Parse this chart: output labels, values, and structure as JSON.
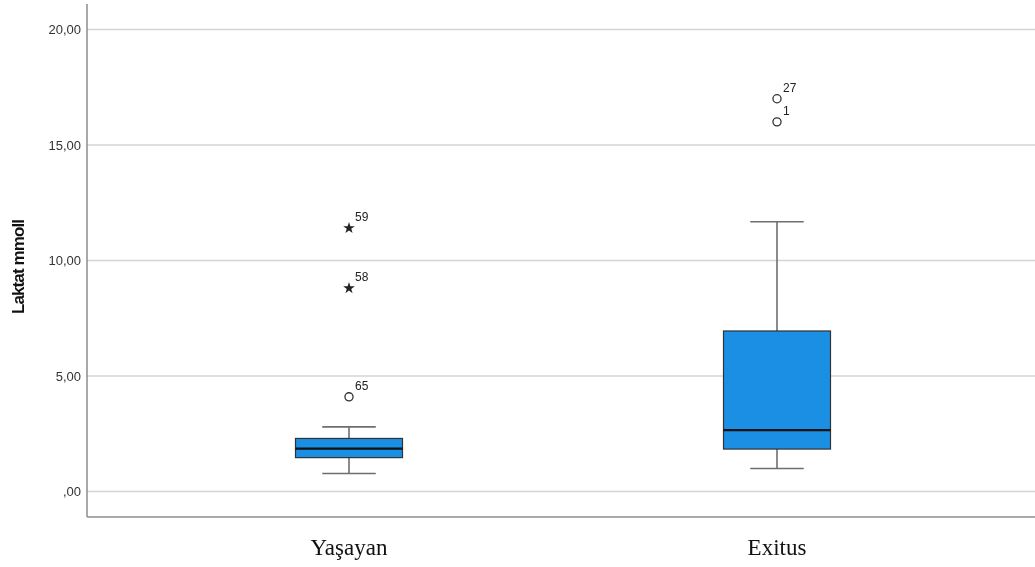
{
  "chart_data": {
    "type": "box",
    "ylabel": "Laktat mmoll",
    "categories": [
      "Yaşayan",
      "Exitus"
    ],
    "series": [
      {
        "type": "box",
        "color": "#1a8fe3",
        "boxes": [
          {
            "low": 0.78,
            "q1": 1.47,
            "median": 1.86,
            "q3": 2.3,
            "high": 2.8
          },
          {
            "low": 1.0,
            "q1": 1.84,
            "median": 2.66,
            "q3": 6.95,
            "high": 11.68
          }
        ]
      },
      {
        "type": "scatter",
        "marker": "circle",
        "color": "#333333",
        "x": [
          "Yaşayan",
          "Exitus",
          "Exitus"
        ],
        "values": [
          4.1,
          16.0,
          17.0
        ]
      },
      {
        "type": "scatter",
        "marker": "star",
        "color": "#222222",
        "x": [
          "Yaşayan",
          "Yaşayan"
        ],
        "values": [
          8.8,
          11.4
        ]
      }
    ],
    "ylim": [
      -1.1,
      21.1
    ],
    "yticks": [
      {
        "value": 0,
        "label": ",00"
      },
      {
        "value": 5,
        "label": "5,00"
      },
      {
        "value": 10,
        "label": "10,00"
      },
      {
        "value": 15,
        "label": "15,00"
      },
      {
        "value": 20,
        "label": "20,00"
      }
    ],
    "grid": "y",
    "annotations": [
      {
        "text": "65",
        "x": "Yaşayan",
        "y": 4.1
      },
      {
        "text": "58",
        "x": "Yaşayan",
        "y": 8.8
      },
      {
        "text": "59",
        "x": "Yaşayan",
        "y": 11.4
      },
      {
        "text": "1",
        "x": "Exitus",
        "y": 16.0
      },
      {
        "text": "27",
        "x": "Exitus",
        "y": 17.0
      }
    ]
  }
}
